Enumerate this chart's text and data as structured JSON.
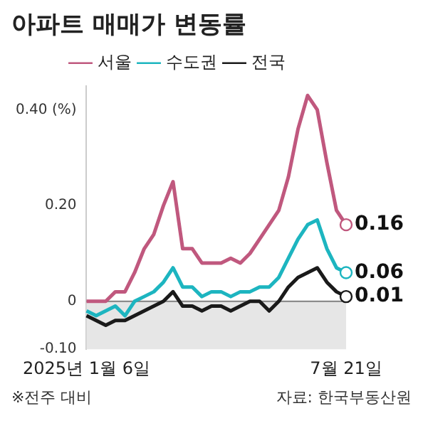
{
  "chart_data": {
    "type": "line",
    "title": "아파트 매매가 변동률",
    "categories": [
      "2025년 1월 6일",
      null,
      null,
      null,
      null,
      null,
      null,
      null,
      null,
      null,
      null,
      null,
      null,
      null,
      null,
      null,
      null,
      null,
      null,
      null,
      null,
      null,
      null,
      null,
      null,
      null,
      null,
      "7월 21일"
    ],
    "series": [
      {
        "name": "서울",
        "color": "#c0587e",
        "values": [
          0,
          0,
          0,
          0.02,
          0.02,
          0.06,
          0.11,
          0.14,
          0.2,
          0.25,
          0.11,
          0.11,
          0.08,
          0.08,
          0.08,
          0.09,
          0.08,
          0.1,
          0.13,
          0.16,
          0.19,
          0.26,
          0.36,
          0.43,
          0.4,
          0.29,
          0.19,
          0.16
        ],
        "value_labels": [
          null,
          null,
          null,
          null,
          null,
          null,
          null,
          null,
          null,
          null,
          null,
          null,
          null,
          null,
          null,
          null,
          null,
          null,
          null,
          null,
          null,
          null,
          null,
          null,
          null,
          null,
          null,
          "0.16"
        ]
      },
      {
        "name": "수도권",
        "color": "#1db5c0",
        "values": [
          -0.02,
          -0.03,
          -0.02,
          -0.01,
          -0.03,
          0,
          0.01,
          0.02,
          0.04,
          0.07,
          0.03,
          0.03,
          0.01,
          0.02,
          0.02,
          0.01,
          0.02,
          0.02,
          0.03,
          0.03,
          0.05,
          0.09,
          0.13,
          0.16,
          0.17,
          0.11,
          0.07,
          0.06
        ],
        "value_labels": [
          null,
          null,
          null,
          null,
          null,
          null,
          null,
          null,
          null,
          null,
          null,
          null,
          null,
          null,
          null,
          null,
          null,
          null,
          null,
          null,
          null,
          null,
          null,
          null,
          null,
          null,
          null,
          "0.06"
        ]
      },
      {
        "name": "전국",
        "color": "#1a1a1a",
        "values": [
          -0.03,
          -0.04,
          -0.05,
          -0.04,
          -0.04,
          -0.03,
          -0.02,
          -0.01,
          0,
          0.02,
          -0.01,
          -0.01,
          -0.02,
          -0.01,
          -0.01,
          -0.02,
          -0.01,
          0,
          0,
          -0.02,
          0,
          0.03,
          0.05,
          0.06,
          0.07,
          0.04,
          0.02,
          0.01
        ],
        "value_labels": [
          null,
          null,
          null,
          null,
          null,
          null,
          null,
          null,
          null,
          null,
          null,
          null,
          null,
          null,
          null,
          null,
          null,
          null,
          null,
          null,
          null,
          null,
          null,
          null,
          null,
          null,
          null,
          "0.01"
        ]
      }
    ],
    "ylim": [
      -0.1,
      0.45
    ],
    "yticks": [
      {
        "value": -0.1,
        "label": "-0.10"
      },
      0,
      {
        "value": 0.2,
        "label": "0.20"
      },
      {
        "value": 0.4,
        "label": "0.40 (%)"
      }
    ],
    "bands": [
      {
        "axis": "y",
        "from": -0.1,
        "to": 0,
        "color": "#e6e6e6"
      }
    ],
    "ref_lines": [
      {
        "axis": "y",
        "value": 0,
        "color": "#8c8c8c"
      }
    ],
    "grid": false,
    "legend": "top",
    "marker": "none",
    "line_style": "solid",
    "annotations": [
      "※전주 대비",
      "자료: 한국부동산원"
    ]
  }
}
